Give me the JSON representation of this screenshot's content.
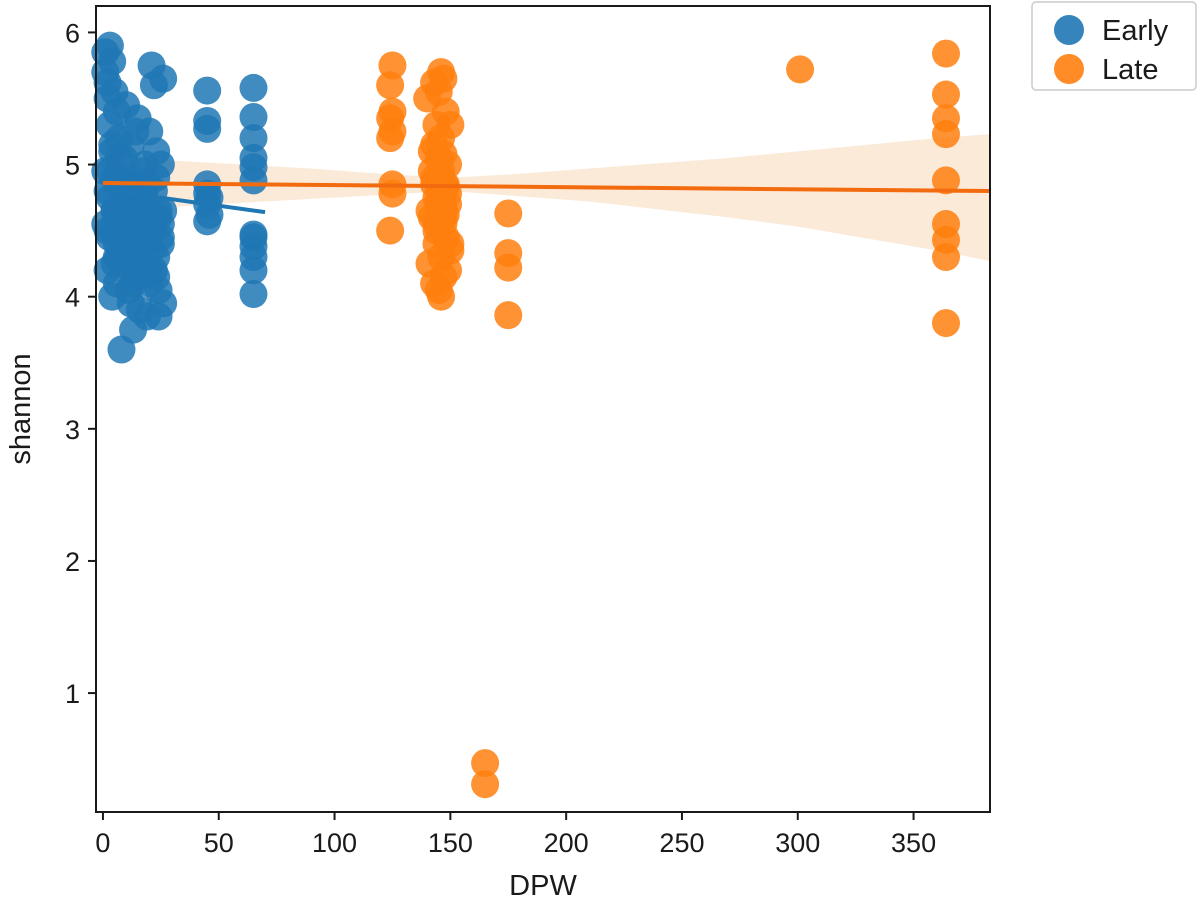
{
  "chart_data": {
    "type": "scatter",
    "title": "",
    "xlabel": "DPW",
    "ylabel": "shannon",
    "xlim": [
      -3,
      383
    ],
    "ylim": [
      0.1,
      6.2
    ],
    "x_ticks": [
      0,
      50,
      100,
      150,
      200,
      250,
      300,
      350
    ],
    "y_ticks": [
      1,
      2,
      3,
      4,
      5,
      6
    ],
    "grid": false,
    "legend": {
      "placement": "outside-top-right"
    },
    "series": [
      {
        "name": "Early",
        "color": "#1f77b4",
        "regression": {
          "x": [
            0,
            70
          ],
          "y": [
            4.81,
            4.64
          ]
        },
        "x": [
          1,
          1,
          2,
          2,
          2,
          3,
          3,
          3,
          4,
          4,
          4,
          5,
          5,
          5,
          6,
          6,
          6,
          7,
          7,
          8,
          8,
          9,
          9,
          10,
          10,
          11,
          11,
          12,
          12,
          13,
          13,
          14,
          14,
          15,
          15,
          16,
          16,
          17,
          17,
          18,
          18,
          19,
          19,
          20,
          20,
          21,
          21,
          22,
          22,
          23,
          23,
          24,
          24,
          25,
          25,
          26,
          26,
          1,
          3,
          5,
          7,
          9,
          11,
          13,
          15,
          17,
          19,
          21,
          23,
          25,
          2,
          4,
          6,
          8,
          10,
          12,
          14,
          16,
          18,
          20,
          22,
          24,
          3,
          6,
          9,
          12,
          15,
          18,
          21,
          24,
          2,
          5,
          8,
          11,
          14,
          17,
          20,
          23,
          26,
          1,
          4,
          7,
          10,
          13,
          16,
          19,
          22,
          25,
          45,
          45,
          45,
          45,
          45,
          45,
          45,
          46,
          46,
          65,
          65,
          65,
          65,
          65,
          65,
          65,
          65,
          65,
          65,
          65,
          65
        ],
        "y": [
          5.85,
          5.7,
          5.5,
          4.2,
          5.62,
          5.9,
          4.45,
          5.3,
          5.78,
          4.0,
          5.1,
          5.55,
          4.65,
          4.25,
          5.4,
          4.9,
          4.1,
          5.2,
          4.55,
          3.6,
          4.35,
          5.05,
          4.75,
          4.3,
          5.45,
          4.05,
          4.6,
          5.15,
          3.95,
          3.75,
          4.85,
          5.25,
          4.15,
          4.5,
          5.35,
          3.9,
          4.7,
          4.95,
          4.2,
          5.0,
          4.4,
          4.65,
          3.85,
          5.25,
          4.1,
          5.75,
          4.5,
          5.6,
          4.8,
          4.3,
          5.1,
          3.85,
          4.6,
          4.45,
          5.0,
          3.95,
          5.65,
          4.55,
          4.95,
          4.65,
          5.05,
          4.25,
          4.75,
          4.85,
          4.45,
          4.6,
          4.7,
          4.35,
          4.9,
          4.55,
          4.8,
          5.15,
          4.4,
          4.6,
          4.7,
          4.9,
          4.3,
          4.5,
          4.8,
          4.2,
          4.55,
          4.65,
          4.75,
          4.3,
          4.7,
          4.85,
          4.15,
          4.4,
          4.6,
          4.05,
          4.5,
          4.9,
          4.35,
          4.25,
          4.7,
          4.6,
          4.45,
          4.15,
          4.65,
          4.95,
          4.5,
          4.3,
          4.7,
          4.1,
          4.55,
          4.85,
          4.2,
          4.4,
          5.56,
          5.33,
          5.27,
          4.85,
          4.78,
          4.7,
          4.57,
          4.62,
          4.75,
          5.58,
          5.36,
          5.2,
          5.05,
          4.98,
          4.88,
          4.47,
          4.38,
          4.3,
          4.2,
          4.02,
          4.45
        ],
        "size": 26
      },
      {
        "name": "Late",
        "color": "#ff7f0e",
        "regression": {
          "x": [
            0,
            383
          ],
          "y": [
            4.86,
            4.8
          ]
        },
        "band": {
          "x": [
            0,
            30,
            60,
            90,
            120,
            150,
            180,
            210,
            240,
            270,
            300,
            330,
            360,
            383
          ],
          "upper": [
            5.05,
            5.03,
            5.0,
            4.97,
            4.93,
            4.9,
            4.93,
            4.97,
            5.01,
            5.05,
            5.1,
            5.15,
            5.2,
            5.23
          ],
          "lower": [
            4.67,
            4.68,
            4.71,
            4.74,
            4.77,
            4.8,
            4.76,
            4.72,
            4.66,
            4.6,
            4.53,
            4.44,
            4.35,
            4.27
          ]
        },
        "x": [
          124,
          124,
          124,
          124,
          125,
          125,
          125,
          125,
          125,
          140,
          141,
          142,
          142,
          143,
          143,
          143,
          144,
          144,
          144,
          145,
          145,
          145,
          146,
          146,
          146,
          146,
          147,
          147,
          147,
          148,
          148,
          148,
          149,
          149,
          149,
          150,
          150,
          141,
          142,
          143,
          144,
          145,
          146,
          147,
          148,
          149,
          150,
          143,
          144,
          145,
          146,
          147,
          148,
          146,
          147,
          165,
          165,
          175,
          175,
          175,
          175,
          301,
          364,
          364,
          364,
          364,
          364,
          364,
          364,
          364,
          364
        ],
        "y": [
          5.2,
          5.35,
          5.6,
          4.5,
          5.75,
          4.78,
          5.25,
          4.85,
          5.4,
          5.5,
          4.25,
          4.6,
          5.1,
          5.62,
          4.1,
          4.9,
          5.3,
          4.4,
          4.75,
          5.55,
          4.05,
          5.05,
          5.7,
          4.3,
          4.8,
          5.2,
          5.65,
          4.15,
          4.55,
          5.4,
          4.85,
          4.45,
          5.0,
          4.2,
          4.7,
          5.3,
          4.35,
          4.65,
          4.95,
          5.15,
          4.5,
          4.7,
          4.9,
          5.08,
          4.62,
          4.78,
          4.4,
          4.85,
          4.55,
          4.72,
          4.95,
          4.6,
          4.83,
          4.0,
          4.68,
          0.47,
          0.31,
          4.63,
          4.33,
          4.22,
          3.86,
          5.72,
          5.84,
          5.53,
          5.35,
          5.23,
          4.88,
          4.55,
          4.43,
          4.3,
          3.8
        ],
        "size": 26
      }
    ]
  }
}
